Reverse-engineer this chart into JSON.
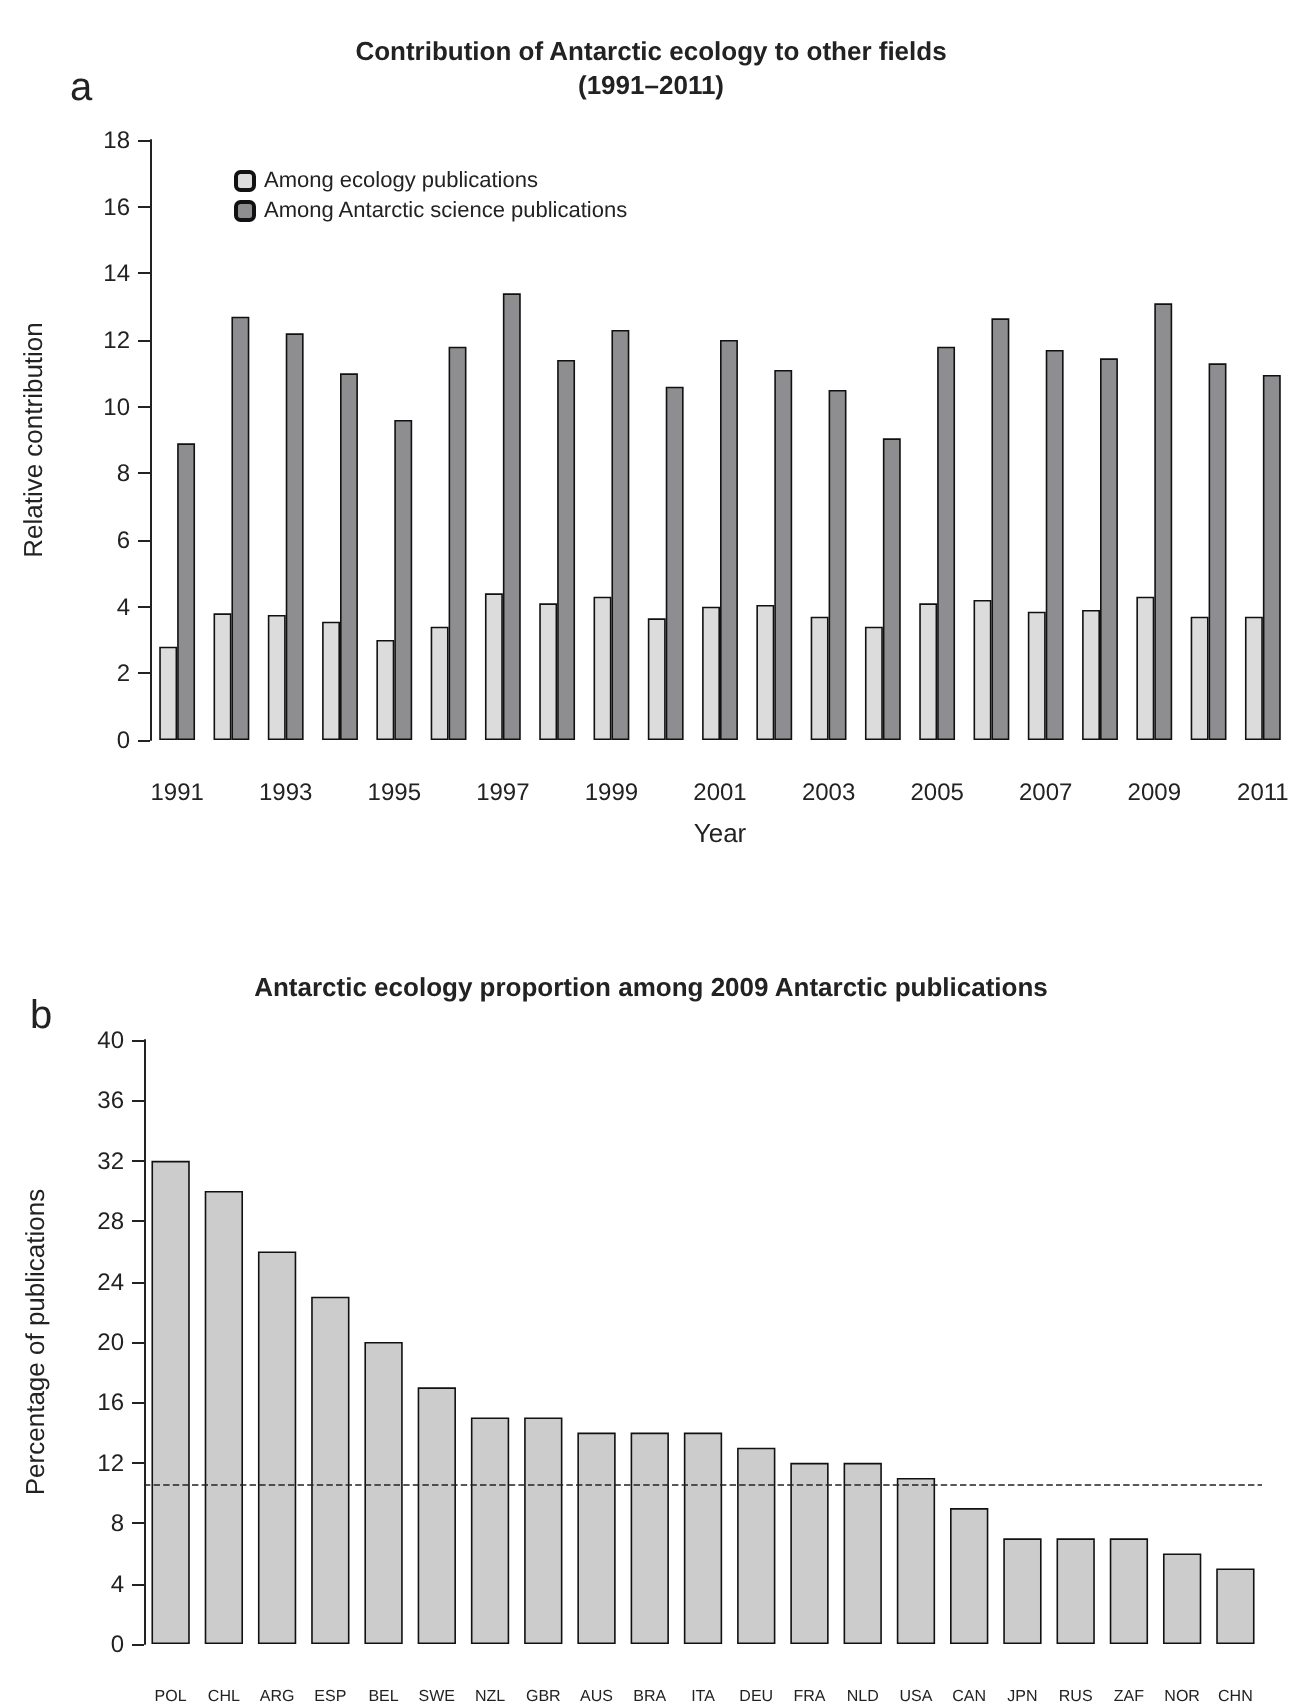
{
  "chart_data": [
    {
      "type": "bar",
      "title": "Contribution of Antarctic ecology to other fields\n(1991–2011)",
      "xlabel": "Year",
      "ylabel": "Relative contribution",
      "annotations": [
        "a"
      ],
      "categories": [
        "1991",
        null,
        "1993",
        null,
        "1995",
        null,
        "1997",
        null,
        "1999",
        null,
        "2001",
        null,
        "2003",
        null,
        "2005",
        null,
        "2007",
        null,
        "2009",
        null,
        "2011"
      ],
      "series": [
        {
          "name": "Among ecology publications",
          "color": "#dcdcdc",
          "values": [
            2.8,
            3.8,
            3.75,
            3.55,
            3.0,
            3.4,
            4.4,
            4.1,
            4.3,
            3.65,
            4.0,
            4.05,
            3.7,
            3.4,
            4.1,
            4.2,
            3.85,
            3.9,
            4.3,
            3.7,
            3.7
          ]
        },
        {
          "name": "Among Antarctic science publications",
          "color": "#8e8e90",
          "values": [
            8.9,
            12.7,
            12.2,
            11.0,
            9.6,
            11.8,
            13.4,
            11.4,
            12.3,
            10.6,
            12.0,
            11.1,
            10.5,
            9.05,
            11.8,
            12.65,
            11.7,
            11.45,
            13.1,
            11.3,
            10.95
          ]
        }
      ],
      "ylim": [
        0,
        18
      ],
      "yticks": [
        0,
        2,
        4,
        6,
        8,
        10,
        12,
        14,
        16,
        18
      ],
      "legend": "top left",
      "grid": false
    },
    {
      "type": "bar",
      "title": "Antarctic ecology proportion among 2009 Antarctic publications",
      "ylabel": "Percentage of publications",
      "annotations": [
        "b"
      ],
      "categories": [
        "POL",
        "CHL",
        "ARG",
        "ESP",
        "BEL",
        "SWE",
        "NZL",
        "GBR",
        "AUS",
        "BRA",
        "ITA",
        "DEU",
        "FRA",
        "NLD",
        "USA",
        "CAN",
        "JPN",
        "RUS",
        "ZAF",
        "NOR",
        "CHN"
      ],
      "values": [
        32,
        30,
        26,
        23,
        20,
        17,
        15,
        15,
        14,
        14,
        14,
        13,
        12,
        12,
        11,
        9,
        7,
        7,
        7,
        6,
        5
      ],
      "color": "#cccccd",
      "ylim": [
        0,
        40
      ],
      "yticks": [
        0,
        4,
        8,
        12,
        16,
        20,
        24,
        28,
        32,
        36,
        40
      ],
      "grid": false,
      "ref_lines": [
        {
          "axis": "y",
          "value": 10.5,
          "line_style": "dashed",
          "color": "#222222"
        }
      ]
    }
  ]
}
